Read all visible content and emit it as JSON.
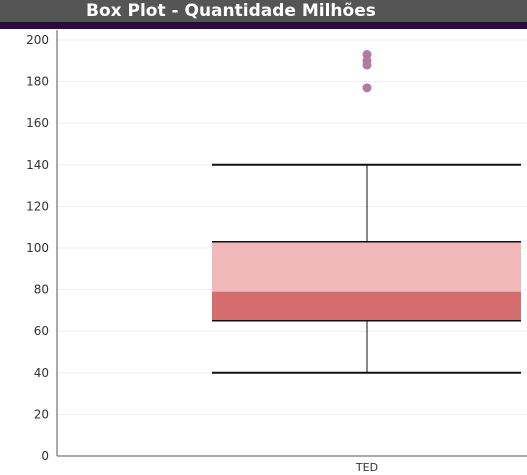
{
  "header": {
    "title": "Box Plot - Quantidade Milhões"
  },
  "colors": {
    "title_bar": "#555555",
    "accent_bar": "#2b0b3d",
    "box_upper": "#f0b8b9",
    "box_lower": "#d56d6f",
    "whisker": "#111111",
    "outlier": "#b07aa1",
    "grid": "#eeeeee",
    "axis": "#555555"
  },
  "chart_data": {
    "type": "box",
    "title": "Box Plot - Quantidade Milhões",
    "xlabel": "",
    "ylabel": "",
    "ylim": [
      0,
      205
    ],
    "yticks": [
      0,
      20,
      40,
      60,
      80,
      100,
      120,
      140,
      160,
      180,
      200
    ],
    "grid": true,
    "categories": [
      "TED"
    ],
    "boxes": [
      {
        "category": "TED",
        "whisker_low": 40,
        "q1": 65,
        "median": 79,
        "q3": 103,
        "whisker_high": 140,
        "outliers": [
          177,
          188,
          190,
          193
        ]
      }
    ]
  }
}
